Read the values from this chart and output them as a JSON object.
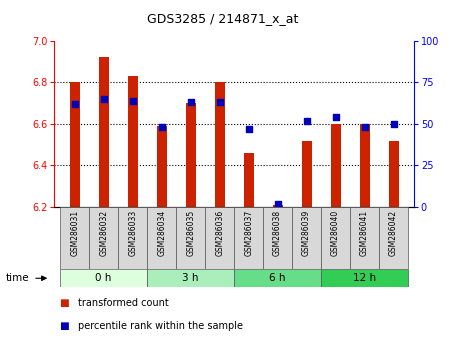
{
  "title": "GDS3285 / 214871_x_at",
  "samples": [
    "GSM286031",
    "GSM286032",
    "GSM286033",
    "GSM286034",
    "GSM286035",
    "GSM286036",
    "GSM286037",
    "GSM286038",
    "GSM286039",
    "GSM286040",
    "GSM286041",
    "GSM286042"
  ],
  "bar_values": [
    6.8,
    6.92,
    6.83,
    6.59,
    6.7,
    6.8,
    6.46,
    6.21,
    6.52,
    6.6,
    6.6,
    6.52
  ],
  "percentile_values": [
    62,
    65,
    64,
    48,
    63,
    63,
    47,
    2,
    52,
    54,
    48,
    50
  ],
  "bar_base": 6.2,
  "bar_color": "#CC2200",
  "dot_color": "#0000BB",
  "ylim_left": [
    6.2,
    7.0
  ],
  "ylim_right": [
    0,
    100
  ],
  "yticks_left": [
    6.2,
    6.4,
    6.6,
    6.8,
    7.0
  ],
  "yticks_right": [
    0,
    25,
    50,
    75,
    100
  ],
  "grid_values": [
    6.4,
    6.6,
    6.8
  ],
  "time_groups": [
    {
      "label": "0 h",
      "start": 0,
      "end": 3,
      "color": "#ddffdd"
    },
    {
      "label": "3 h",
      "start": 3,
      "end": 6,
      "color": "#aaeebb"
    },
    {
      "label": "6 h",
      "start": 6,
      "end": 9,
      "color": "#66dd88"
    },
    {
      "label": "12 h",
      "start": 9,
      "end": 12,
      "color": "#33cc55"
    }
  ],
  "legend_bar_label": "transformed count",
  "legend_dot_label": "percentile rank within the sample",
  "bar_width": 0.35
}
